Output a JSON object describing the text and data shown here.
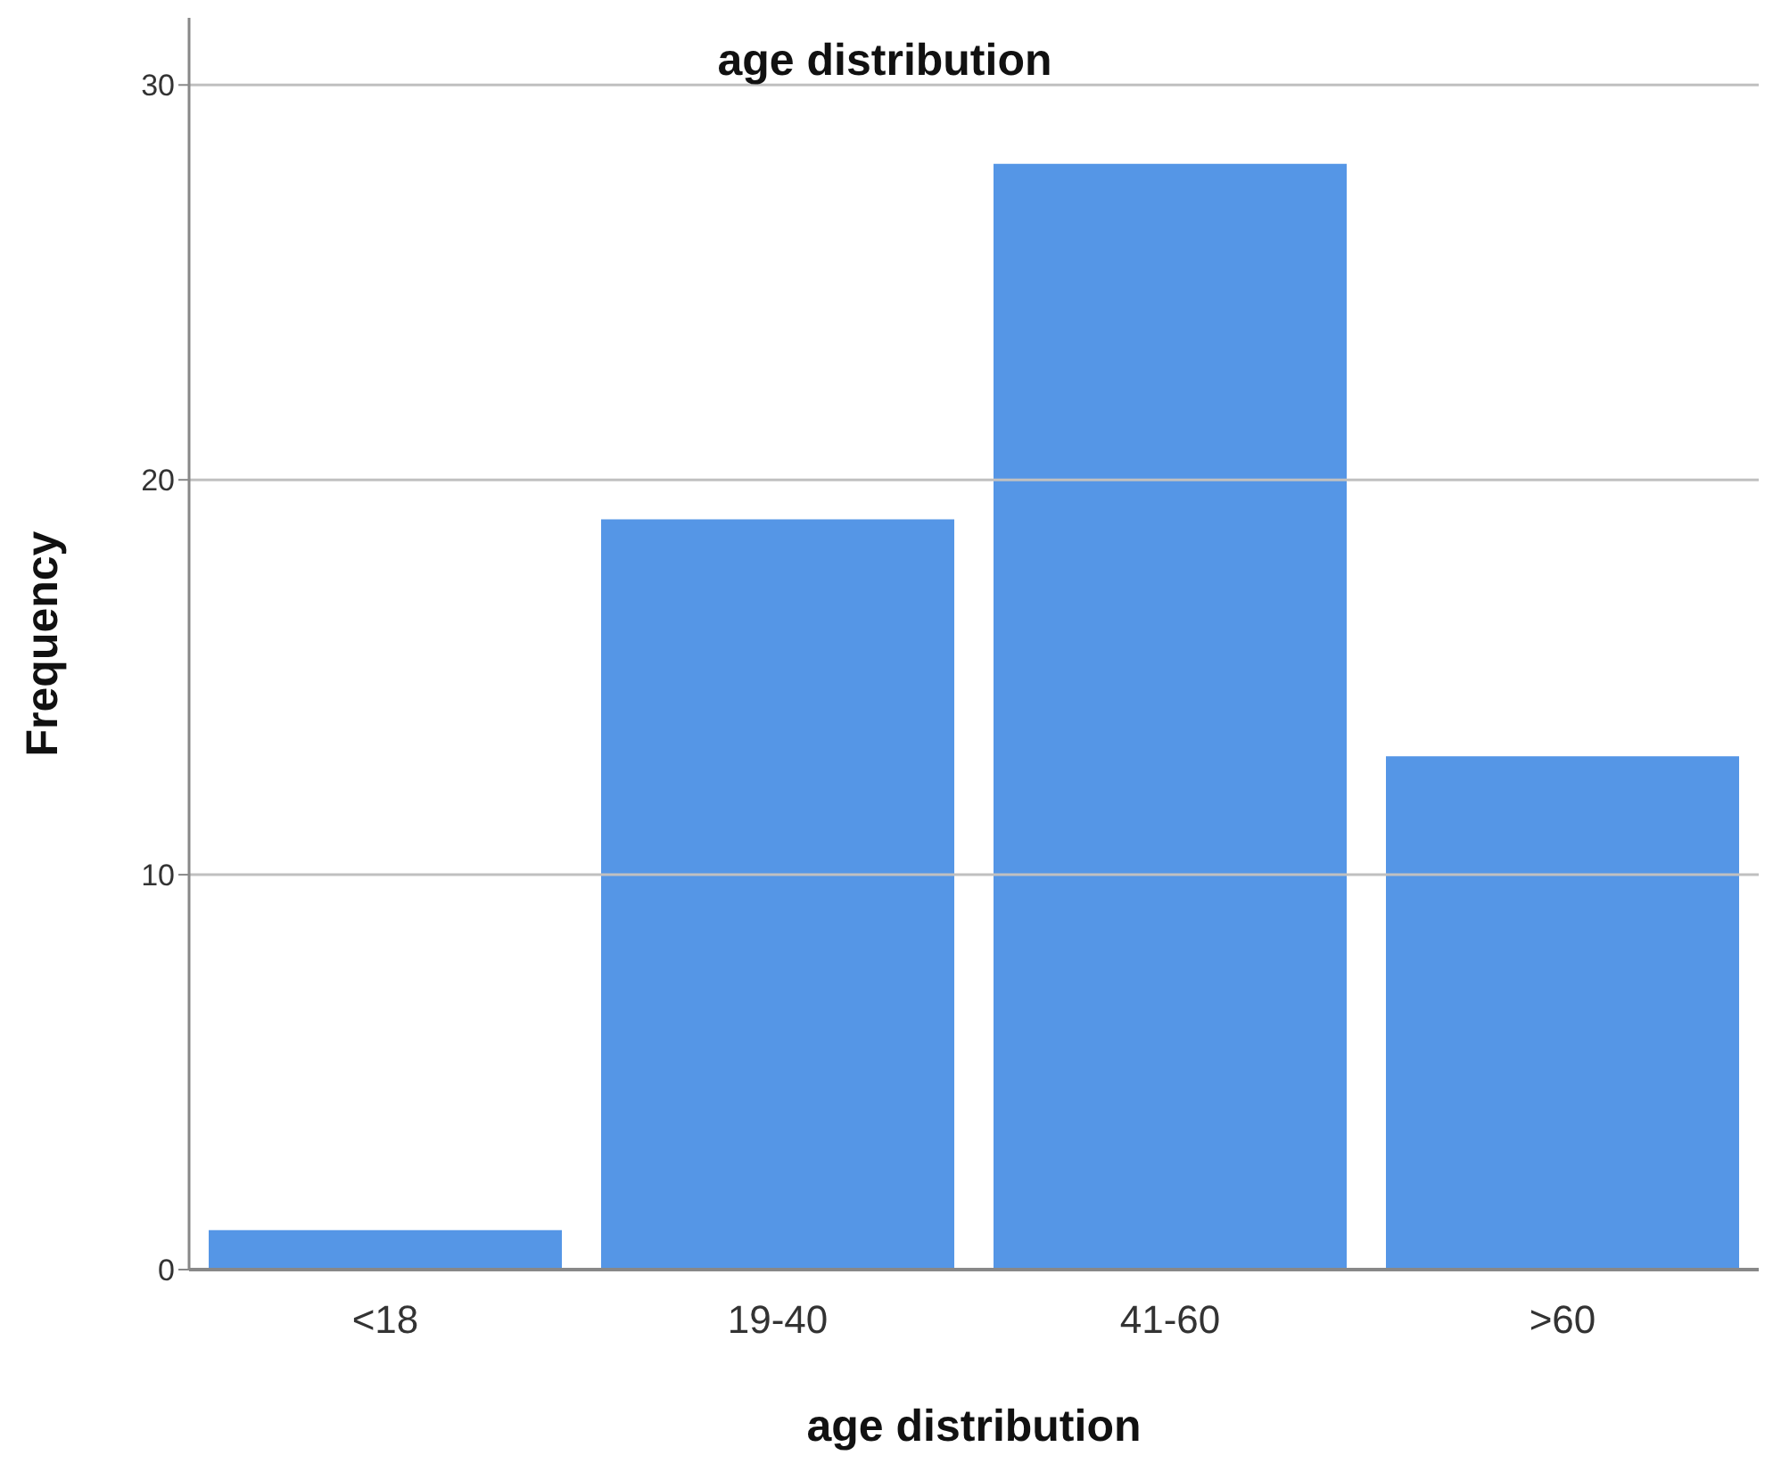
{
  "chart_data": {
    "type": "bar",
    "title": "age distribution",
    "xlabel": "age distribution",
    "ylabel": "Frequency",
    "categories": [
      "<18",
      "19-40",
      "41-60",
      ">60"
    ],
    "values": [
      1,
      19,
      28,
      13
    ],
    "color": "#5596e6",
    "ylim": [
      0,
      31.7
    ],
    "yticks": [
      0,
      10,
      20,
      30
    ],
    "grid": "y"
  }
}
